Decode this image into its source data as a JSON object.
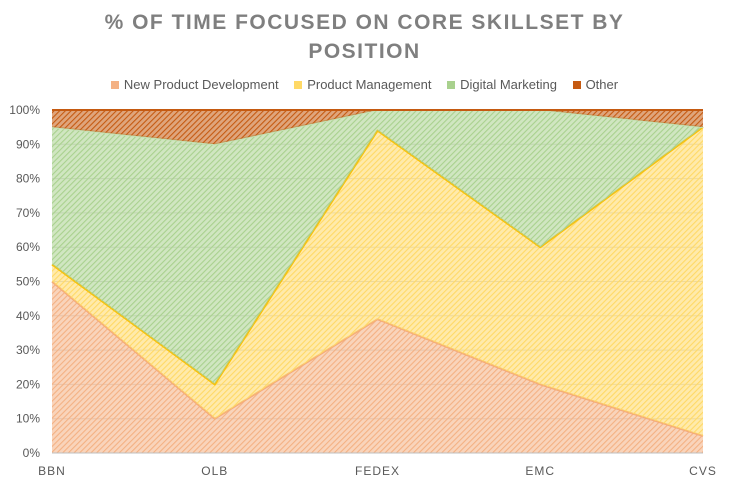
{
  "title_line1": "% OF TIME FOCUSED ON CORE SKILLSET BY",
  "title_line2": "POSITION",
  "chart_data": {
    "type": "area",
    "stacked": true,
    "title": "% OF TIME FOCUSED ON CORE SKILLSET BY POSITION",
    "categories": [
      "BBN",
      "OLB",
      "FEDEX",
      "EMC",
      "CVS"
    ],
    "series": [
      {
        "name": "New Product Development",
        "values": [
          50,
          10,
          39,
          20,
          5
        ],
        "color": "#f4b183",
        "line": "#f4a97a"
      },
      {
        "name": "Product Management",
        "values": [
          5,
          10,
          55,
          40,
          90
        ],
        "color": "#ffd966",
        "line": "#ffc000"
      },
      {
        "name": "Digital Marketing",
        "values": [
          40,
          70,
          6,
          40,
          0
        ],
        "color": "#a9d18e",
        "line": "#c5e0b4"
      },
      {
        "name": "Other",
        "values": [
          5,
          10,
          0,
          0,
          5
        ],
        "color": "#c55a11",
        "line": "#c55a11"
      }
    ],
    "yticks": [
      "0%",
      "10%",
      "20%",
      "30%",
      "40%",
      "50%",
      "60%",
      "70%",
      "80%",
      "90%",
      "100%"
    ],
    "ylim": [
      0,
      100
    ],
    "legend": "top"
  }
}
